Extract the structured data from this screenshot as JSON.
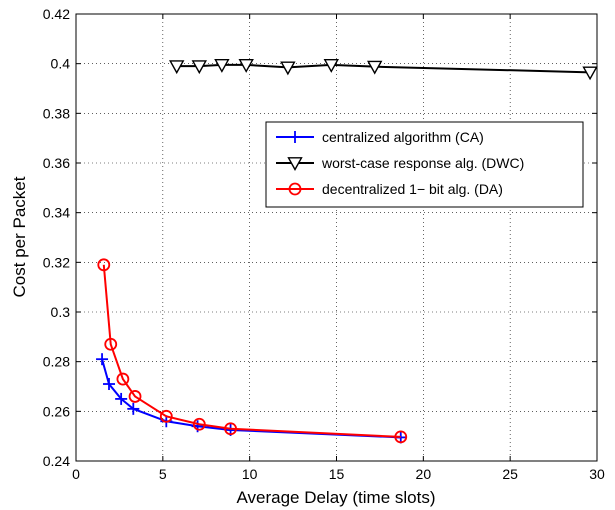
{
  "chart_data": {
    "type": "line",
    "title": "",
    "xlabel": "Average Delay (time slots)",
    "ylabel": "Cost per Packet",
    "xlim": [
      0,
      30
    ],
    "ylim": [
      0.24,
      0.42
    ],
    "xticks": [
      "0",
      "5",
      "10",
      "15",
      "20",
      "25",
      "30"
    ],
    "yticks": [
      "0.24",
      "0.26",
      "0.28",
      "0.3",
      "0.32",
      "0.34",
      "0.36",
      "0.38",
      "0.4",
      "0.42"
    ],
    "grid": true,
    "legend": "top-right",
    "series": [
      {
        "name": "centralized algorithm (CA)",
        "color": "#0000ff",
        "marker": "plus",
        "x": [
          1.5,
          1.9,
          2.6,
          3.3,
          5.2,
          7.0,
          8.9,
          18.7
        ],
        "y": [
          0.281,
          0.271,
          0.265,
          0.261,
          0.256,
          0.254,
          0.2525,
          0.2495
        ]
      },
      {
        "name": "worst-case response alg. (DWC)",
        "color": "#000000",
        "marker": "triangle-down",
        "x": [
          5.8,
          7.1,
          8.4,
          9.8,
          12.2,
          14.7,
          17.2,
          29.6
        ],
        "y": [
          0.399,
          0.399,
          0.3995,
          0.3995,
          0.3985,
          0.3995,
          0.3988,
          0.3965
        ]
      },
      {
        "name": "decentralized 1− bit alg. (DA)",
        "color": "#ff0000",
        "marker": "circle",
        "x": [
          1.6,
          2.0,
          2.7,
          3.4,
          5.2,
          7.1,
          8.9,
          18.7
        ],
        "y": [
          0.319,
          0.287,
          0.273,
          0.266,
          0.258,
          0.2548,
          0.253,
          0.2497
        ]
      }
    ]
  }
}
